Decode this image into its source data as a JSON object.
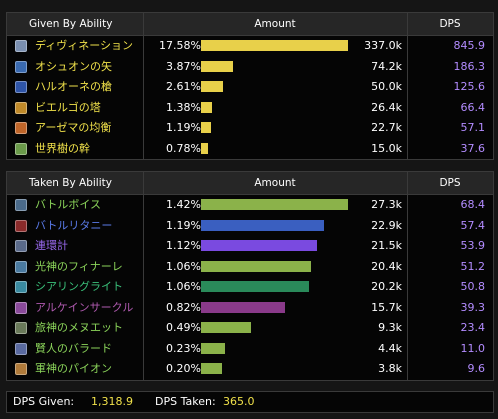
{
  "given": {
    "headers": {
      "ability": "Given By Ability",
      "amount": "Amount",
      "dps": "DPS"
    },
    "rows": [
      {
        "name": "ディヴィネーション",
        "pct": "17.58%",
        "amount": "337.0k",
        "dps": "845.9",
        "fraction": 1.0,
        "bar_color": "#e8d04a",
        "name_color": "#f0e14a",
        "icon": "divination-icon",
        "icon_color": "#7a8fb0"
      },
      {
        "name": "オシュオンの矢",
        "pct": "3.87%",
        "amount": "74.2k",
        "dps": "186.3",
        "fraction": 0.22,
        "bar_color": "#e8d04a",
        "name_color": "#f0e14a",
        "icon": "arrow-card-icon",
        "icon_color": "#3a6ab0"
      },
      {
        "name": "ハルオーネの槍",
        "pct": "2.61%",
        "amount": "50.0k",
        "dps": "125.6",
        "fraction": 0.148,
        "bar_color": "#e8d04a",
        "name_color": "#f0e14a",
        "icon": "spear-card-icon",
        "icon_color": "#2f55a8"
      },
      {
        "name": "ビエルゴの塔",
        "pct": "1.38%",
        "amount": "26.4k",
        "dps": "66.4",
        "fraction": 0.078,
        "bar_color": "#e8d04a",
        "name_color": "#f0e14a",
        "icon": "tower-card-icon",
        "icon_color": "#c08a2a"
      },
      {
        "name": "アーゼマの均衡",
        "pct": "1.19%",
        "amount": "22.7k",
        "dps": "57.1",
        "fraction": 0.067,
        "bar_color": "#e8d04a",
        "name_color": "#f0e14a",
        "icon": "balance-card-icon",
        "icon_color": "#c0662a"
      },
      {
        "name": "世界樹の幹",
        "pct": "0.78%",
        "amount": "15.0k",
        "dps": "37.6",
        "fraction": 0.045,
        "bar_color": "#e8d04a",
        "name_color": "#f0e14a",
        "icon": "bole-card-icon",
        "icon_color": "#6a9a4a"
      }
    ]
  },
  "taken": {
    "headers": {
      "ability": "Taken By Ability",
      "amount": "Amount",
      "dps": "DPS"
    },
    "rows": [
      {
        "name": "バトルボイス",
        "pct": "1.42%",
        "amount": "27.3k",
        "dps": "68.4",
        "fraction": 1.0,
        "bar_color": "#8bb24a",
        "name_color": "#8bd45a",
        "icon": "battle-voice-icon",
        "icon_color": "#4a6a8a"
      },
      {
        "name": "バトルリタニー",
        "pct": "1.19%",
        "amount": "22.9k",
        "dps": "57.4",
        "fraction": 0.838,
        "bar_color": "#3a5fc0",
        "name_color": "#5a7ae8",
        "icon": "battle-litany-icon",
        "icon_color": "#8a2a2a"
      },
      {
        "name": "連環計",
        "pct": "1.12%",
        "amount": "21.5k",
        "dps": "53.9",
        "fraction": 0.786,
        "bar_color": "#7a4ae0",
        "name_color": "#9a6af0",
        "icon": "chain-stratagem-icon",
        "icon_color": "#5a6a8a"
      },
      {
        "name": "光神のフィナーレ",
        "pct": "1.06%",
        "amount": "20.4k",
        "dps": "51.2",
        "fraction": 0.745,
        "bar_color": "#8bb24a",
        "name_color": "#8bd45a",
        "icon": "radiant-finale-icon",
        "icon_color": "#4a7aa0"
      },
      {
        "name": "シアリングライト",
        "pct": "1.06%",
        "amount": "20.2k",
        "dps": "50.8",
        "fraction": 0.738,
        "bar_color": "#2a8a5a",
        "name_color": "#3ac07a",
        "icon": "searing-light-icon",
        "icon_color": "#3a8aa0"
      },
      {
        "name": "アルケインサークル",
        "pct": "0.82%",
        "amount": "15.7k",
        "dps": "39.3",
        "fraction": 0.573,
        "bar_color": "#8a3a8a",
        "name_color": "#b05ab0",
        "icon": "arcane-circle-icon",
        "icon_color": "#8a4a9a"
      },
      {
        "name": "旅神のメヌエット",
        "pct": "0.49%",
        "amount": "9.3k",
        "dps": "23.4",
        "fraction": 0.342,
        "bar_color": "#8bb24a",
        "name_color": "#8bd45a",
        "icon": "minuet-icon",
        "icon_color": "#6a7a5a"
      },
      {
        "name": "賢人のバラード",
        "pct": "0.23%",
        "amount": "4.4k",
        "dps": "11.0",
        "fraction": 0.16,
        "bar_color": "#8bb24a",
        "name_color": "#8bd45a",
        "icon": "ballad-icon",
        "icon_color": "#5a6aa0"
      },
      {
        "name": "軍神のパイオン",
        "pct": "0.20%",
        "amount": "3.8k",
        "dps": "9.6",
        "fraction": 0.14,
        "bar_color": "#8bb24a",
        "name_color": "#8bd45a",
        "icon": "paeon-icon",
        "icon_color": "#b07a3a"
      }
    ]
  },
  "footer": {
    "given_label": "DPS Given:",
    "given_value": "1,318.9",
    "taken_label": "DPS Taken:",
    "taken_value": "365.0"
  }
}
